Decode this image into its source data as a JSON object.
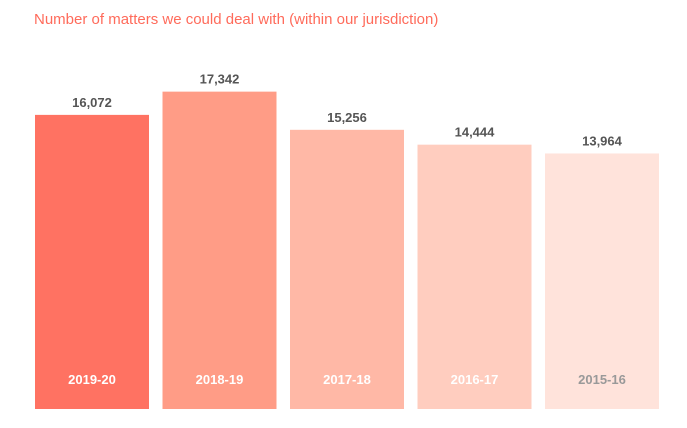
{
  "chart_data": {
    "type": "bar",
    "title": "Number of matters we could deal with (within our jurisdiction)",
    "xlabel": "",
    "ylabel": "",
    "categories": [
      "2019-20",
      "2018-19",
      "2017-18",
      "2016-17",
      "2015-16"
    ],
    "values": [
      16072,
      17342,
      15256,
      14444,
      13964
    ],
    "value_labels": [
      "16,072",
      "17,342",
      "15,256",
      "14,444",
      "13,964"
    ],
    "bar_colors": [
      "#ff7262",
      "#ff9c86",
      "#ffb8a6",
      "#ffcdbf",
      "#ffe3db"
    ],
    "category_label_colors": [
      "#ffffff",
      "#ffffff",
      "#ffffff",
      "#ffffff",
      "#999999"
    ],
    "title_color": "#ff6b5b",
    "value_label_color": "#555555",
    "grid": false,
    "legend": "none"
  }
}
